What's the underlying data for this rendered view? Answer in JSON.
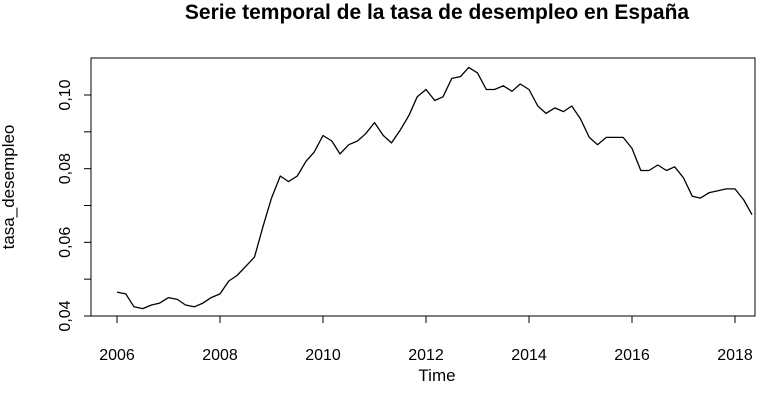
{
  "chart_data": {
    "type": "line",
    "title": "Serie temporal de la tasa de desempleo en España",
    "xlabel": "Time",
    "ylabel": "tasa_desempleo",
    "xlim": [
      2006,
      2018.4
    ],
    "ylim": [
      0.04,
      0.11
    ],
    "x_ticks": [
      2006,
      2008,
      2010,
      2012,
      2014,
      2016,
      2018
    ],
    "x_tick_labels": [
      "2006",
      "2008",
      "2010",
      "2012",
      "2014",
      "2016",
      "2018"
    ],
    "y_ticks": [
      0.04,
      0.06,
      0.08,
      0.1
    ],
    "y_tick_labels": [
      "0,04",
      "0,06",
      "0,08",
      "0,10"
    ],
    "grid": false,
    "series": [
      {
        "x": [
          2006.0,
          2006.17,
          2006.33,
          2006.5,
          2006.67,
          2006.83,
          2007.0,
          2007.17,
          2007.33,
          2007.5,
          2007.67,
          2007.83,
          2008.0,
          2008.17,
          2008.33,
          2008.5,
          2008.67,
          2008.83,
          2009.0,
          2009.17,
          2009.33,
          2009.5,
          2009.67,
          2009.83,
          2010.0,
          2010.17,
          2010.33,
          2010.5,
          2010.67,
          2010.83,
          2011.0,
          2011.17,
          2011.33,
          2011.5,
          2011.67,
          2011.83,
          2012.0,
          2012.17,
          2012.33,
          2012.5,
          2012.67,
          2012.83,
          2013.0,
          2013.17,
          2013.33,
          2013.5,
          2013.67,
          2013.83,
          2014.0,
          2014.17,
          2014.33,
          2014.5,
          2014.67,
          2014.83,
          2015.0,
          2015.17,
          2015.33,
          2015.5,
          2015.67,
          2015.83,
          2016.0,
          2016.17,
          2016.33,
          2016.5,
          2016.67,
          2016.83,
          2017.0,
          2017.17,
          2017.33,
          2017.5,
          2017.67,
          2017.83,
          2018.0,
          2018.17,
          2018.33
        ],
        "values": [
          0.0465,
          0.046,
          0.0425,
          0.042,
          0.043,
          0.0435,
          0.045,
          0.0445,
          0.043,
          0.0425,
          0.0435,
          0.045,
          0.046,
          0.0495,
          0.051,
          0.0535,
          0.056,
          0.064,
          0.072,
          0.078,
          0.0765,
          0.078,
          0.082,
          0.0845,
          0.089,
          0.0875,
          0.084,
          0.0865,
          0.0875,
          0.0895,
          0.0925,
          0.089,
          0.087,
          0.0905,
          0.0945,
          0.0995,
          0.1015,
          0.0985,
          0.0995,
          0.1045,
          0.105,
          0.1075,
          0.106,
          0.1015,
          0.1015,
          0.1025,
          0.101,
          0.103,
          0.1015,
          0.097,
          0.095,
          0.0965,
          0.0955,
          0.097,
          0.0935,
          0.0885,
          0.0865,
          0.0885,
          0.0885,
          0.0885,
          0.0855,
          0.0795,
          0.0795,
          0.081,
          0.0795,
          0.0805,
          0.0775,
          0.0725,
          0.072,
          0.0735,
          0.074,
          0.0745,
          0.0745,
          0.0715,
          0.0675
        ]
      }
    ]
  }
}
